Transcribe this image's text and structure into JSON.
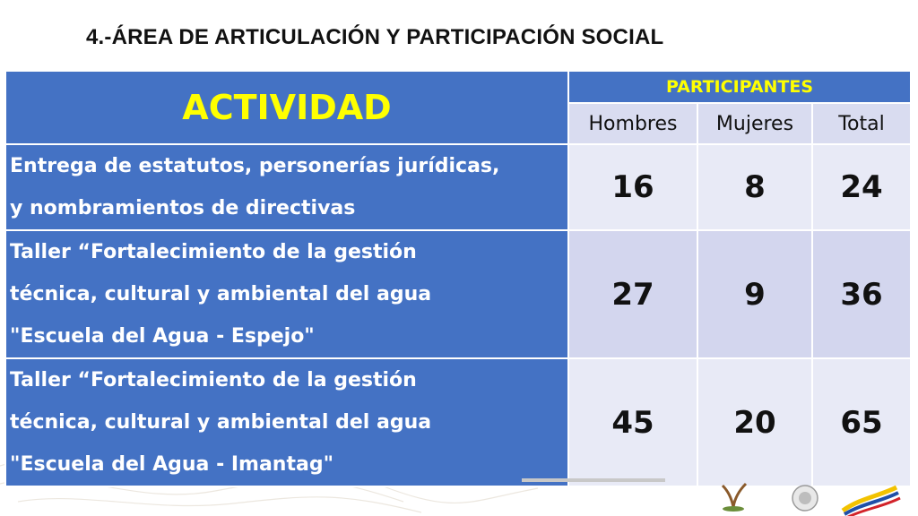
{
  "slide": {
    "title": "4.-ÁREA DE ARTICULACIÓN Y PARTICIPACIÓN SOCIAL"
  },
  "table": {
    "header": {
      "actividad": "ACTIVIDAD",
      "participantes": "PARTICIPANTES",
      "hombres": "Hombres",
      "mujeres": "Mujeres",
      "total": "Total"
    },
    "rows": [
      {
        "actividad_lines": [
          "Entrega de estatutos, personerías jurídicas,",
          "y nombramientos de directivas"
        ],
        "hombres": "16",
        "mujeres": "8",
        "total": "24"
      },
      {
        "actividad_lines": [
          "Taller “Fortalecimiento de la gestión",
          "técnica, cultural y ambiental del agua",
          "\"Escuela del Agua - Espejo\""
        ],
        "hombres": "27",
        "mujeres": "9",
        "total": "36"
      },
      {
        "actividad_lines": [
          "Taller “Fortalecimiento de la gestión",
          "técnica, cultural y ambiental del agua",
          "\"Escuela del Agua - Imantag\""
        ],
        "hombres": "45",
        "mujeres": "20",
        "total": "65"
      }
    ]
  },
  "colors": {
    "header_blue": "#4472c4",
    "header_text_yellow": "#ffff00",
    "subheader_bg": "#d9dcf0",
    "row_light": "#e8eaf6",
    "row_mid": "#d3d6ee"
  }
}
